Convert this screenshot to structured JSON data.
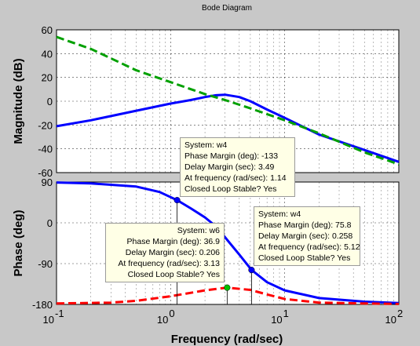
{
  "chart_data": {
    "type": "line",
    "title": "Bode Diagram",
    "xlabel": "Frequency  (rad/sec)",
    "x_scale": "log",
    "xlim": [
      0.1,
      100
    ],
    "x_ticks": [
      "10^-1",
      "10^0",
      "10^1",
      "10^2"
    ],
    "grid": true,
    "colors": {
      "blue": "#0000ff",
      "green": "#00a000",
      "red": "#ff0000",
      "marker_green": "#00c000"
    },
    "magnitude": {
      "ylabel": "Magnitude (dB)",
      "ylim": [
        -60,
        60
      ],
      "y_ticks": [
        60,
        40,
        20,
        0,
        -20,
        -40,
        -60
      ],
      "series": [
        {
          "color": "blue",
          "style": "solid",
          "x": [
            0.1,
            0.2,
            0.5,
            1.0,
            1.5,
            2.0,
            2.5,
            3.0,
            4.0,
            5.0,
            7.0,
            10,
            20,
            50,
            100
          ],
          "y": [
            -21,
            -16,
            -8,
            -2,
            1,
            3.5,
            5,
            5.5,
            3.5,
            0,
            -7,
            -14,
            -28,
            -41,
            -51
          ]
        },
        {
          "color": "green",
          "style": "dashed",
          "x": [
            0.1,
            0.2,
            0.5,
            1.0,
            2.0,
            3.0,
            5.0,
            10,
            20,
            50,
            100
          ],
          "y": [
            54,
            44,
            26,
            16,
            6,
            1,
            -6,
            -16,
            -27,
            -43,
            -53
          ]
        }
      ]
    },
    "phase": {
      "ylabel": "Phase (deg)",
      "ylim": [
        -180,
        90
      ],
      "y_ticks": [
        90,
        0,
        -90,
        -180
      ],
      "series": [
        {
          "color": "blue",
          "style": "solid",
          "x": [
            0.1,
            0.2,
            0.5,
            0.8,
            1.14,
            1.5,
            2.0,
            2.5,
            3.0,
            4.0,
            5.12,
            7.0,
            10,
            20,
            50,
            100
          ],
          "y": [
            89,
            87,
            80,
            68,
            50,
            32,
            12,
            -8,
            -32,
            -70,
            -104,
            -131,
            -149,
            -166,
            -174,
            -177
          ]
        },
        {
          "color": "red",
          "style": "dashed",
          "x": [
            0.1,
            0.3,
            0.5,
            1.0,
            2.0,
            3.13,
            5.0,
            7.0,
            10,
            20,
            50,
            100
          ],
          "y": [
            -178,
            -176,
            -172,
            -162,
            -149,
            -143,
            -148,
            -158,
            -168,
            -176,
            -178,
            -179
          ]
        }
      ],
      "markers": [
        {
          "x": 1.14,
          "y": 50,
          "color": "blue"
        },
        {
          "x": 5.12,
          "y": -104,
          "color": "blue"
        },
        {
          "x": 3.13,
          "y": -143,
          "color": "marker_green"
        }
      ]
    }
  },
  "datatips": [
    {
      "system": "System: w4",
      "phase_margin": "Phase Margin (deg): -133",
      "delay_margin": "Delay Margin (sec): 3.49",
      "frequency": "At frequency (rad/sec): 1.14",
      "stable": "Closed Loop Stable? Yes"
    },
    {
      "system": "System: w4",
      "phase_margin": "Phase Margin (deg): 75.8",
      "delay_margin": "Delay Margin (sec): 0.258",
      "frequency": "At frequency (rad/sec): 5.12",
      "stable": "Closed Loop Stable? Yes"
    },
    {
      "system": "System: w6",
      "phase_margin": "Phase Margin (deg): 36.9",
      "delay_margin": "Delay Margin (sec): 0.206",
      "frequency": "At frequency (rad/sec): 3.13",
      "stable": "Closed Loop Stable? Yes"
    }
  ]
}
